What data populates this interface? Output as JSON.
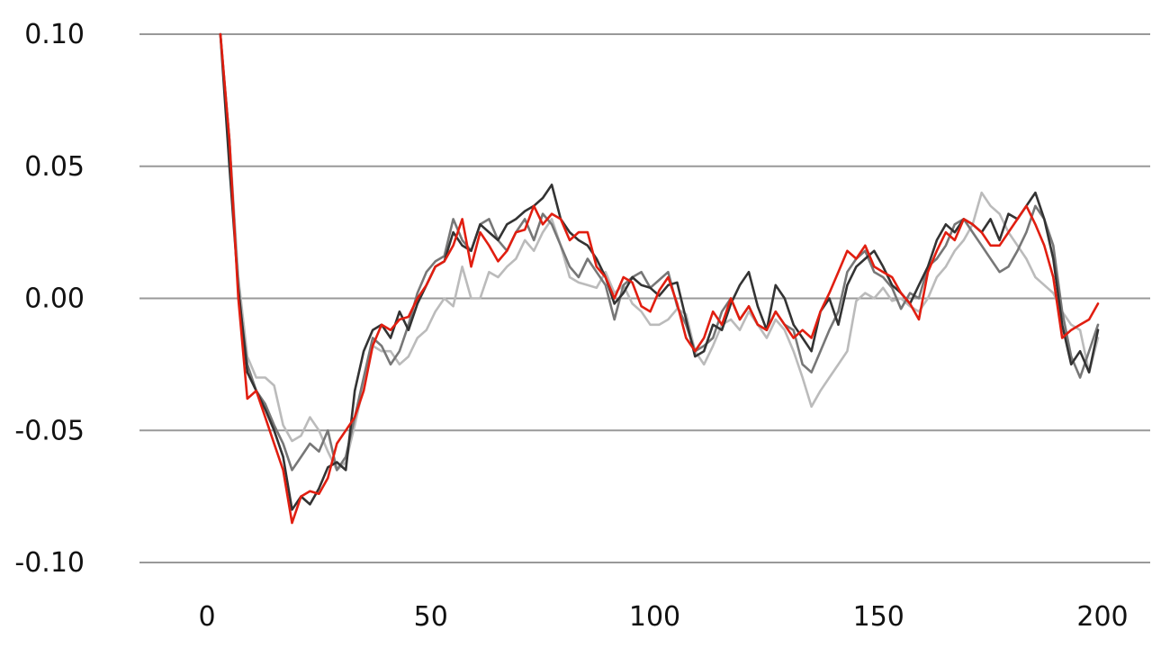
{
  "chart_data": {
    "type": "line",
    "title": "",
    "xlabel": "",
    "ylabel": "",
    "xlim": [
      0,
      200
    ],
    "ylim": [
      -0.1,
      0.1
    ],
    "grid": "horizontal",
    "legend": "none",
    "x_ticks": [
      {
        "value": 0,
        "label": "0"
      },
      {
        "value": 50,
        "label": "50"
      },
      {
        "value": 100,
        "label": "100"
      },
      {
        "value": 150,
        "label": "150"
      },
      {
        "value": 200,
        "label": "200"
      }
    ],
    "y_ticks": [
      {
        "value": 0.1,
        "label": "0.10"
      },
      {
        "value": 0.05,
        "label": "0.05"
      },
      {
        "value": 0.0,
        "label": "0.00"
      },
      {
        "value": -0.05,
        "label": "-0.05"
      },
      {
        "value": -0.1,
        "label": "-0.10"
      }
    ],
    "colors": {
      "grid": "#999999",
      "text": "#111111"
    },
    "series": [
      {
        "color": "#bbbbbb",
        "x": [
          3,
          5,
          7,
          9,
          11,
          13,
          15,
          17,
          19,
          21,
          23,
          25,
          27,
          29,
          31,
          33,
          35,
          37,
          39,
          41,
          43,
          45,
          47,
          49,
          51,
          53,
          55,
          57,
          59,
          61,
          63,
          65,
          67,
          69,
          71,
          73,
          75,
          77,
          79,
          81,
          83,
          85,
          87,
          89,
          91,
          93,
          95,
          97,
          99,
          101,
          103,
          105,
          107,
          109,
          111,
          113,
          115,
          117,
          119,
          121,
          123,
          125,
          127,
          129,
          131,
          133,
          135,
          137,
          139,
          141,
          143,
          145,
          147,
          149,
          151,
          153,
          155,
          157,
          159,
          161,
          163,
          165,
          167,
          169,
          171,
          173,
          175,
          177,
          179,
          181,
          183,
          185,
          187,
          189,
          191,
          193,
          195,
          197,
          199
        ],
        "y": [
          0.1,
          0.06,
          0.008,
          -0.022,
          -0.03,
          -0.03,
          -0.033,
          -0.048,
          -0.054,
          -0.052,
          -0.045,
          -0.05,
          -0.058,
          -0.065,
          -0.062,
          -0.048,
          -0.033,
          -0.018,
          -0.02,
          -0.02,
          -0.025,
          -0.022,
          -0.015,
          -0.012,
          -0.005,
          0,
          -0.003,
          0.012,
          0,
          0,
          0.01,
          0.008,
          0.012,
          0.015,
          0.022,
          0.018,
          0.025,
          0.03,
          0.02,
          0.008,
          0.006,
          0.005,
          0.004,
          0.01,
          0.002,
          0.005,
          -0.002,
          -0.005,
          -0.01,
          -0.01,
          -0.008,
          -0.004,
          -0.006,
          -0.02,
          -0.025,
          -0.018,
          -0.01,
          -0.008,
          -0.012,
          -0.005,
          -0.01,
          -0.015,
          -0.008,
          -0.012,
          -0.02,
          -0.03,
          -0.041,
          -0.035,
          -0.03,
          -0.025,
          -0.02,
          -0.001,
          0.002,
          0,
          0.004,
          -0.001,
          0,
          -0.003,
          -0.005,
          0,
          0.008,
          0.012,
          0.018,
          0.022,
          0.028,
          0.04,
          0.035,
          0.032,
          0.025,
          0.02,
          0.015,
          0.008,
          0.005,
          0.002,
          -0.005,
          -0.01,
          -0.012,
          -0.028,
          -0.015
        ],
        "name": ""
      },
      {
        "color": "#777777",
        "x": [
          3,
          5,
          7,
          9,
          11,
          13,
          15,
          17,
          19,
          21,
          23,
          25,
          27,
          29,
          31,
          33,
          35,
          37,
          39,
          41,
          43,
          45,
          47,
          49,
          51,
          53,
          55,
          57,
          59,
          61,
          63,
          65,
          67,
          69,
          71,
          73,
          75,
          77,
          79,
          81,
          83,
          85,
          87,
          89,
          91,
          93,
          95,
          97,
          99,
          101,
          103,
          105,
          107,
          109,
          111,
          113,
          115,
          117,
          119,
          121,
          123,
          125,
          127,
          129,
          131,
          133,
          135,
          137,
          139,
          141,
          143,
          145,
          147,
          149,
          151,
          153,
          155,
          157,
          159,
          161,
          163,
          165,
          167,
          169,
          171,
          173,
          175,
          177,
          179,
          181,
          183,
          185,
          187,
          189,
          191,
          193,
          195,
          197,
          199
        ],
        "y": [
          0.1,
          0.06,
          0.002,
          -0.025,
          -0.035,
          -0.04,
          -0.048,
          -0.055,
          -0.065,
          -0.06,
          -0.055,
          -0.058,
          -0.05,
          -0.065,
          -0.06,
          -0.045,
          -0.03,
          -0.015,
          -0.018,
          -0.025,
          -0.02,
          -0.01,
          0.002,
          0.01,
          0.014,
          0.016,
          0.03,
          0.022,
          0.018,
          0.028,
          0.03,
          0.022,
          0.018,
          0.025,
          0.03,
          0.022,
          0.032,
          0.028,
          0.02,
          0.012,
          0.008,
          0.015,
          0.01,
          0.005,
          -0.008,
          0.005,
          0.008,
          0.01,
          0.004,
          0.007,
          0.01,
          -0.003,
          -0.01,
          -0.02,
          -0.018,
          -0.015,
          -0.005,
          0,
          -0.008,
          -0.003,
          -0.01,
          -0.012,
          -0.005,
          -0.01,
          -0.012,
          -0.025,
          -0.028,
          -0.02,
          -0.012,
          -0.005,
          0.01,
          0.015,
          0.018,
          0.01,
          0.008,
          0.004,
          -0.004,
          0.002,
          0,
          0.012,
          0.015,
          0.02,
          0.028,
          0.03,
          0.025,
          0.02,
          0.015,
          0.01,
          0.012,
          0.018,
          0.025,
          0.035,
          0.03,
          0.02,
          -0.005,
          -0.022,
          -0.03,
          -0.02,
          -0.01
        ],
        "name": ""
      },
      {
        "color": "#333333",
        "x": [
          3,
          5,
          7,
          9,
          11,
          13,
          15,
          17,
          19,
          21,
          23,
          25,
          27,
          29,
          31,
          33,
          35,
          37,
          39,
          41,
          43,
          45,
          47,
          49,
          51,
          53,
          55,
          57,
          59,
          61,
          63,
          65,
          67,
          69,
          71,
          73,
          75,
          77,
          79,
          81,
          83,
          85,
          87,
          89,
          91,
          93,
          95,
          97,
          99,
          101,
          103,
          105,
          107,
          109,
          111,
          113,
          115,
          117,
          119,
          121,
          123,
          125,
          127,
          129,
          131,
          133,
          135,
          137,
          139,
          141,
          143,
          145,
          147,
          149,
          151,
          153,
          155,
          157,
          159,
          161,
          163,
          165,
          167,
          169,
          171,
          173,
          175,
          177,
          179,
          181,
          183,
          185,
          187,
          189,
          191,
          193,
          195,
          197,
          199
        ],
        "y": [
          0.1,
          0.05,
          0.004,
          -0.028,
          -0.035,
          -0.042,
          -0.05,
          -0.06,
          -0.08,
          -0.075,
          -0.078,
          -0.072,
          -0.064,
          -0.062,
          -0.065,
          -0.035,
          -0.02,
          -0.012,
          -0.01,
          -0.015,
          -0.005,
          -0.012,
          -0.002,
          0.005,
          0.012,
          0.014,
          0.025,
          0.02,
          0.018,
          0.028,
          0.025,
          0.022,
          0.028,
          0.03,
          0.033,
          0.035,
          0.038,
          0.043,
          0.03,
          0.025,
          0.022,
          0.02,
          0.015,
          0.008,
          -0.002,
          0.002,
          0.008,
          0.005,
          0.004,
          0.001,
          0.005,
          0.006,
          -0.008,
          -0.022,
          -0.02,
          -0.01,
          -0.012,
          -0.002,
          0.005,
          0.01,
          -0.003,
          -0.012,
          0.005,
          0,
          -0.01,
          -0.015,
          -0.02,
          -0.005,
          0,
          -0.01,
          0.005,
          0.012,
          0.015,
          0.018,
          0.012,
          0.005,
          0.002,
          -0.002,
          0.005,
          0.012,
          0.022,
          0.028,
          0.025,
          0.03,
          0.028,
          0.025,
          0.03,
          0.022,
          0.032,
          0.03,
          0.035,
          0.04,
          0.03,
          0.015,
          -0.01,
          -0.025,
          -0.02,
          -0.028,
          -0.012
        ],
        "name": ""
      },
      {
        "color": "#e11e10",
        "x": [
          3,
          5,
          7,
          9,
          11,
          13,
          15,
          17,
          19,
          21,
          23,
          25,
          27,
          29,
          31,
          33,
          35,
          37,
          39,
          41,
          43,
          45,
          47,
          49,
          51,
          53,
          55,
          57,
          59,
          61,
          63,
          65,
          67,
          69,
          71,
          73,
          75,
          77,
          79,
          81,
          83,
          85,
          87,
          89,
          91,
          93,
          95,
          97,
          99,
          101,
          103,
          105,
          107,
          109,
          111,
          113,
          115,
          117,
          119,
          121,
          123,
          125,
          127,
          129,
          131,
          133,
          135,
          137,
          139,
          141,
          143,
          145,
          147,
          149,
          151,
          153,
          155,
          157,
          159,
          161,
          163,
          165,
          167,
          169,
          171,
          173,
          175,
          177,
          179,
          181,
          183,
          185,
          187,
          189,
          191,
          193,
          195,
          197,
          199
        ],
        "y": [
          0.1,
          0.06,
          0,
          -0.038,
          -0.035,
          -0.045,
          -0.055,
          -0.065,
          -0.085,
          -0.075,
          -0.073,
          -0.074,
          -0.068,
          -0.055,
          -0.05,
          -0.045,
          -0.035,
          -0.018,
          -0.01,
          -0.012,
          -0.008,
          -0.007,
          0,
          0.005,
          0.012,
          0.014,
          0.02,
          0.03,
          0.012,
          0.025,
          0.02,
          0.014,
          0.018,
          0.025,
          0.026,
          0.035,
          0.028,
          0.032,
          0.03,
          0.022,
          0.025,
          0.025,
          0.012,
          0.008,
          0,
          0.008,
          0.006,
          -0.003,
          -0.005,
          0.003,
          0.008,
          -0.002,
          -0.015,
          -0.02,
          -0.015,
          -0.005,
          -0.01,
          0,
          -0.008,
          -0.003,
          -0.01,
          -0.012,
          -0.005,
          -0.01,
          -0.015,
          -0.012,
          -0.015,
          -0.005,
          0.002,
          0.01,
          0.018,
          0.015,
          0.02,
          0.012,
          0.01,
          0.008,
          0.002,
          -0.002,
          -0.008,
          0.01,
          0.018,
          0.025,
          0.022,
          0.03,
          0.028,
          0.025,
          0.02,
          0.02,
          0.025,
          0.03,
          0.035,
          0.028,
          0.02,
          0.008,
          -0.015,
          -0.012,
          -0.01,
          -0.008,
          -0.002
        ],
        "name": ""
      }
    ]
  }
}
